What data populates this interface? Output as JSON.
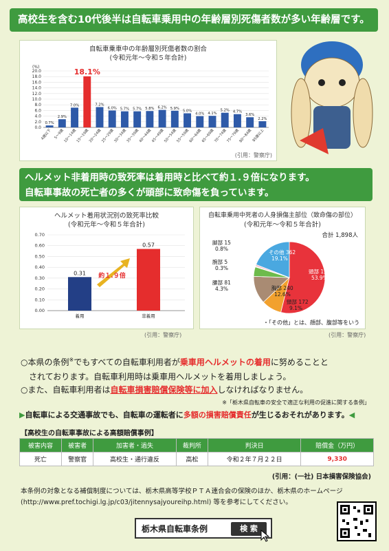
{
  "headline1": "高校生を含む10代後半は自転車乗用中の年齢層別死傷者数が多い年齢層です。",
  "chart1": {
    "title_line1": "自転車乗車中の年齢層別死傷者数の割合",
    "title_line2": "(令和元年～令和５年合計)",
    "unit": "(%)",
    "source": "(引用：警察庁)"
  },
  "headline2_line1": "ヘルメット非着用時の致死率は着用時と比べて約１.９倍になります。",
  "headline2_line2": "自転車事故の死亡者の多くが頭部に致命傷を負っています。",
  "chart2": {
    "title_line1": "ヘルメット着用状況別の致死率比較",
    "title_line2": "(令和元年～令和５年合計)",
    "ratio_label": "約１.９倍",
    "source": "(引用：警察庁)"
  },
  "chart3": {
    "title_line1": "自転車乗用中死者の人身損傷主部位（致命傷の部位）",
    "title_line2": "(令和元年～令和５年合計)",
    "total": "合計 1,898人",
    "note": "・「その他」とは、顔部、腹部等をいう",
    "source": "(引用：警察庁)"
  },
  "chart_data": [
    {
      "type": "bar",
      "title": "自転車乗車中の年齢層別死傷者数の割合",
      "ylabel": "(%)",
      "ylim": [
        0,
        20
      ],
      "categories": [
        "4歳以下",
        "5～9歳",
        "10～14歳",
        "15～19歳",
        "20～24歳",
        "25～29歳",
        "30～34歳",
        "35～39歳",
        "40～44歳",
        "45～49歳",
        "50～54歳",
        "55～59歳",
        "60～64歳",
        "65～69歳",
        "70～74歳",
        "75～79歳",
        "80～84歳",
        "85歳以上"
      ],
      "values": [
        0.7,
        2.9,
        7.0,
        18.1,
        7.2,
        6.0,
        5.7,
        5.7,
        5.8,
        6.2,
        5.9,
        5.0,
        4.0,
        4.1,
        5.2,
        4.7,
        3.6,
        2.2
      ],
      "labels": [
        "0.7%",
        "2.9%",
        "7.0%",
        "18.1%",
        "7.2%",
        "6.0%",
        "5.7%",
        "5.7%",
        "5.8%",
        "6.2%",
        "5.9%",
        "5.0%",
        "4.0%",
        "4.1%",
        "5.2%",
        "4.7%",
        "3.6%",
        "2.2%"
      ],
      "yticks": [
        "0.0",
        "2.0",
        "4.0",
        "6.0",
        "8.0",
        "10.0",
        "12.0",
        "14.0",
        "16.0",
        "18.0",
        "20.0"
      ]
    },
    {
      "type": "bar",
      "title": "ヘルメット着用状況別の致死率比較",
      "ylim": [
        0,
        0.7
      ],
      "categories": [
        "着用",
        "非着用"
      ],
      "values": [
        0.31,
        0.57
      ],
      "labels": [
        "0.31",
        "0.57"
      ],
      "yticks": [
        "0.00",
        "0.10",
        "0.20",
        "0.30",
        "0.40",
        "0.50",
        "0.60",
        "0.70"
      ]
    },
    {
      "type": "pie",
      "title": "自転車乗用中死者の人身損傷主部位（致命傷の部位）",
      "slices": [
        {
          "name": "頭部",
          "count": "1,023",
          "pct": "53.9%",
          "value": 53.9,
          "color": "#e8333b"
        },
        {
          "name": "頸部",
          "count": "172",
          "pct": "9.1%",
          "value": 9.1,
          "color": "#f2a12e"
        },
        {
          "name": "胸部",
          "count": "240",
          "pct": "12.6%",
          "value": 12.6,
          "color": "#a98b73"
        },
        {
          "name": "腰部",
          "count": "81",
          "pct": "4.3%",
          "value": 4.3,
          "color": "#6dbb4c"
        },
        {
          "name": "腕部",
          "count": "5",
          "pct": "0.3%",
          "value": 0.3,
          "color": "#e5df3b"
        },
        {
          "name": "脚部",
          "count": "15",
          "pct": "0.8%",
          "value": 0.8,
          "color": "#f7b8c6"
        },
        {
          "name": "その他",
          "count": "362",
          "pct": "19.1%",
          "value": 19.1,
          "color": "#4aa8e0"
        }
      ]
    }
  ],
  "notice1_a": "○本県の条例",
  "notice1_star": "※",
  "notice1_b": "でもすべての自転車利用者が",
  "notice1_c": "乗車用ヘルメットの着用",
  "notice1_d": "に努めることと",
  "notice1_e": "されております。自転車利用時は乗車用ヘルメットを着用しましょう。",
  "notice2_a": "○また、自転車利用者は",
  "notice2_b": "自転車損害賠償保険等に加入",
  "notice2_c": "しなければなりません。",
  "ordinance_note": "※「栃木県自転車の安全で適正な利用の促進に関する条例」",
  "warning_a": "自転車による交通事故でも、自転車の運転者に",
  "warning_b": "多額の損害賠償責任",
  "warning_c": "が生じるおそれがあります。",
  "table_title": "【高校生の自転車事故による高額賠償事例】",
  "table_headers": [
    "被害内容",
    "被害者",
    "加害者・過失",
    "裁判所",
    "判決日",
    "賠償金（万円）"
  ],
  "table_row": [
    "死亡",
    "警察官",
    "高校生・通行違反",
    "高松",
    "令和２年７月２２日",
    "9,330"
  ],
  "table_source": "(引用：(一社) 日本損害保険協会)",
  "footer_line1": "本条例の対象となる補償制度については、栃木県高等学校ＰＴＡ連合会の保険のほか、栃木県のホームページ",
  "footer_line2": "(http://www.pref.tochigi.lg.jp/c03/jitennysajyoureihp.html) 等を参考にしてください。",
  "search_text": "栃木県自転車条例",
  "search_button": "検 索"
}
